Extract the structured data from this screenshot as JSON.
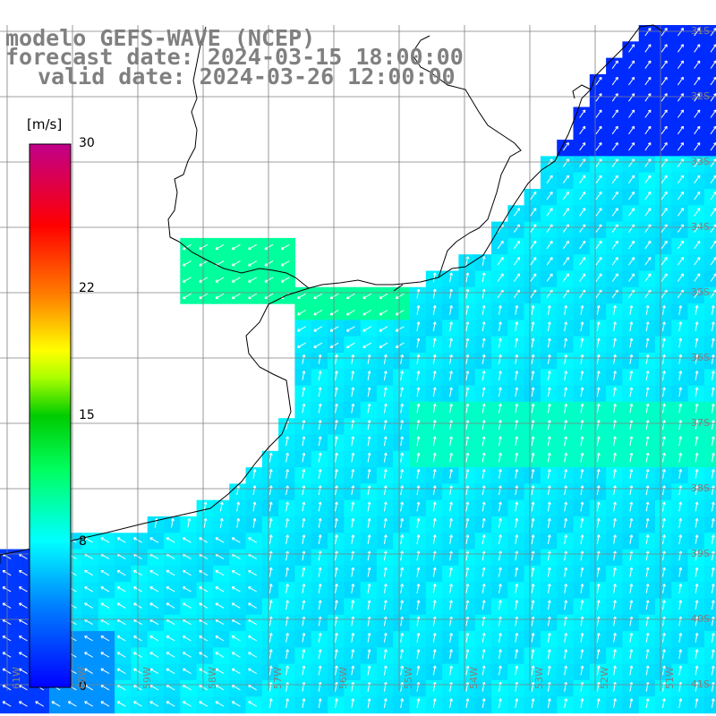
{
  "header": {
    "line1": "modelo GEFS-WAVE (NCEP)",
    "line2": "forecast date: 2024-03-15 18:00:00",
    "line3": "valid date: 2024-03-26 12:00:00"
  },
  "colorbar": {
    "unit": "[m/s]",
    "min": 0,
    "max": 30,
    "ticks": [
      {
        "value": 30,
        "label": "30"
      },
      {
        "value": 22,
        "label": "22"
      },
      {
        "value": 15,
        "label": "15"
      },
      {
        "value": 8,
        "label": "8"
      },
      {
        "value": 0,
        "label": "0"
      }
    ]
  },
  "map": {
    "variable": "wind speed",
    "units": "m/s",
    "region": "Rio de la Plata / South-West Atlantic",
    "lat_labels": [
      "31S",
      "32S",
      "33S",
      "34S",
      "35S",
      "36S",
      "37S",
      "38S",
      "39S",
      "40S",
      "41S"
    ],
    "lon_labels": [
      "61W",
      "60W",
      "59W",
      "58W",
      "57W",
      "56W",
      "55W",
      "54W",
      "53W",
      "52W",
      "51W"
    ],
    "colors": {
      "land": "#ffffff",
      "coast": "#000000",
      "grid": "#808080",
      "arrows": "#ffffff",
      "title": "#808080"
    }
  }
}
